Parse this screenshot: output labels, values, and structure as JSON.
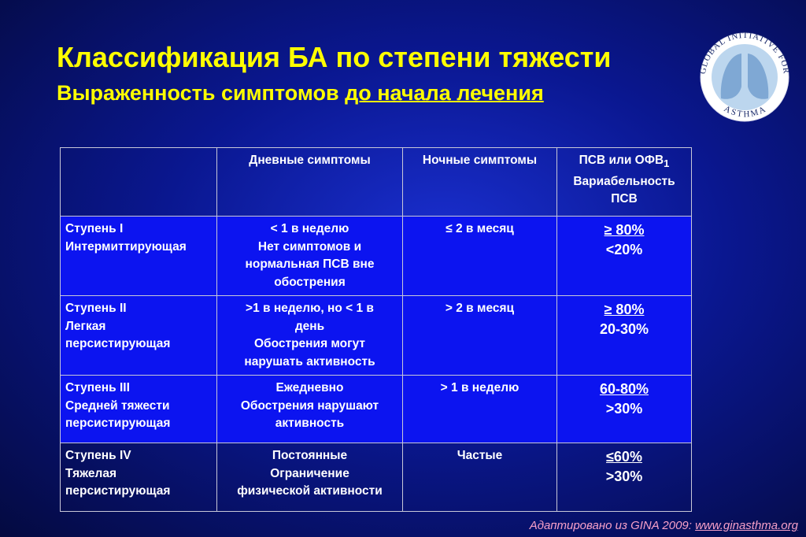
{
  "header": {
    "title": "Классификация БА по степени тяжести",
    "subtitle": "Выраженность симптомов ",
    "subtitle_underlined": "до начала лечения"
  },
  "logo": {
    "top": "GLOBAL INITIATIVE FOR",
    "bottom": "ASTHMA"
  },
  "table": {
    "columns": [
      {
        "lines": [
          "Дневные симптомы"
        ]
      },
      {
        "lines": [
          "Ночные симптомы"
        ]
      },
      {
        "lines": [
          "ПСВ или ОФВ",
          "Вариабельность",
          "ПСВ"
        ],
        "sub": "1"
      }
    ],
    "rows": [
      {
        "stage": [
          "Ступень I",
          "Интермиттирующая"
        ],
        "day": [
          "< 1 в неделю",
          "Нет симптомов и",
          "нормальная ПСВ вне",
          "обострения"
        ],
        "night": [
          "≤ 2 в месяц"
        ],
        "pef": [
          "≥ 80%",
          "<20%"
        ]
      },
      {
        "stage": [
          "Ступень II",
          "Легкая",
          "персистирующая"
        ],
        "day": [
          ">1 в неделю, но < 1 в",
          "день",
          "Обострения могут",
          "нарушать активность"
        ],
        "night": [
          "> 2 в месяц"
        ],
        "pef": [
          "≥ 80%",
          "20-30%"
        ]
      },
      {
        "stage": [
          "Ступень III",
          "Средней тяжести",
          "персистирующая"
        ],
        "day": [
          "Ежедневно",
          "Обострения нарушают",
          "активность"
        ],
        "night": [
          "> 1 в неделю"
        ],
        "pef": [
          "60-80%",
          ">30%"
        ]
      },
      {
        "stage": [
          "Ступень IV",
          "Тяжелая",
          "персистирующая"
        ],
        "day": [
          "Постоянные",
          "Ограничение",
          "физической активности"
        ],
        "night": [
          "Частые"
        ],
        "pef": [
          "≤60%",
          ">30%"
        ]
      }
    ]
  },
  "footer": {
    "text": "Адаптировано из GINA 2009: ",
    "link": "www.ginasthma.org"
  }
}
